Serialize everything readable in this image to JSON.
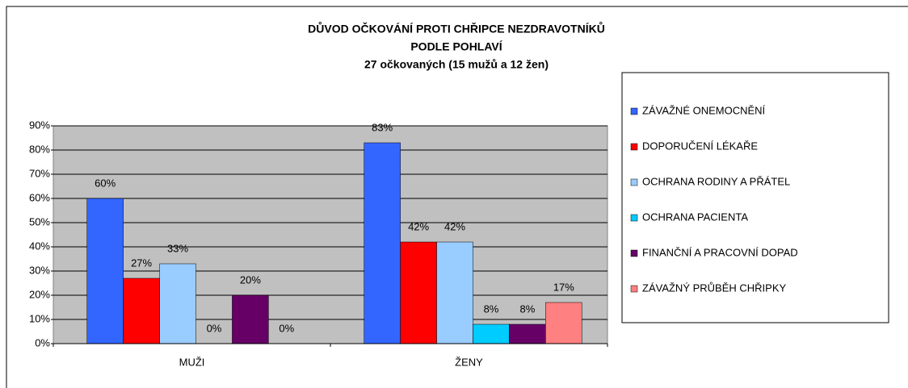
{
  "chart_data": {
    "type": "bar",
    "title": [
      "DŮVOD OČKOVÁNÍ PROTI CHŘIPCE NEZDRAVOTNÍKŮ",
      "PODLE POHLAVÍ",
      "27 očkovaných (15 mužů a 12 žen)"
    ],
    "categories": [
      "MUŽI",
      "ŽENY"
    ],
    "series": [
      {
        "name": "ZÁVAŽNÉ ONEMOCNĚNÍ",
        "color": "#3366ff",
        "values": [
          60,
          83
        ],
        "value_labels": [
          "60%",
          "83%"
        ]
      },
      {
        "name": "DOPORUČENÍ LÉKAŘE",
        "color": "#ff0000",
        "values": [
          27,
          42
        ],
        "value_labels": [
          "27%",
          "42%"
        ]
      },
      {
        "name": "OCHRANA RODINY A PŘÁTEL",
        "color": "#99ccff",
        "values": [
          33,
          42
        ],
        "value_labels": [
          "33%",
          "42%"
        ]
      },
      {
        "name": "OCHRANA PACIENTA",
        "color": "#00ccff",
        "values": [
          0,
          8
        ],
        "value_labels": [
          "0%",
          "8%"
        ]
      },
      {
        "name": "FINANČNÍ A PRACOVNÍ DOPAD",
        "color": "#660066",
        "values": [
          20,
          8
        ],
        "value_labels": [
          "20%",
          "8%"
        ]
      },
      {
        "name": "ZÁVAŽNÝ PRŮBĚH CHŘIPKY",
        "color": "#ff8080",
        "values": [
          0,
          17
        ],
        "value_labels": [
          "0%",
          "17%"
        ]
      }
    ],
    "ylim": [
      0,
      90
    ],
    "yticks": [
      {
        "value": 0,
        "label": "0%"
      },
      {
        "value": 10,
        "label": "10%"
      },
      {
        "value": 20,
        "label": "20%"
      },
      {
        "value": 30,
        "label": "30%"
      },
      {
        "value": 40,
        "label": "40%"
      },
      {
        "value": 50,
        "label": "50%"
      },
      {
        "value": 60,
        "label": "60%"
      },
      {
        "value": 70,
        "label": "70%"
      },
      {
        "value": 80,
        "label": "80%"
      },
      {
        "value": 90,
        "label": "90%"
      }
    ],
    "grid": true,
    "legend": "right"
  }
}
